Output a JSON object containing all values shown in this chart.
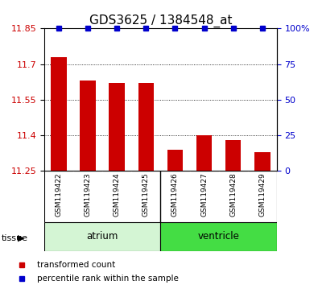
{
  "title": "GDS3625 / 1384548_at",
  "samples": [
    "GSM119422",
    "GSM119423",
    "GSM119424",
    "GSM119425",
    "GSM119426",
    "GSM119427",
    "GSM119428",
    "GSM119429"
  ],
  "bar_values": [
    11.73,
    11.63,
    11.62,
    11.62,
    11.34,
    11.4,
    11.38,
    11.33
  ],
  "percentile_values": [
    100,
    100,
    100,
    100,
    100,
    100,
    100,
    100
  ],
  "ymin": 11.25,
  "ymax": 11.85,
  "yticks": [
    11.25,
    11.4,
    11.55,
    11.7,
    11.85
  ],
  "ytick_labels": [
    "11.25",
    "11.4",
    "11.55",
    "11.7",
    "11.85"
  ],
  "right_yticks": [
    0,
    25,
    50,
    75,
    100
  ],
  "right_ytick_labels": [
    "0",
    "25",
    "50",
    "75",
    "100%"
  ],
  "bar_color": "#cc0000",
  "percentile_color": "#0000cc",
  "atrium_color": "#d4f5d4",
  "ventricle_color": "#44dd44",
  "sample_box_color": "#cccccc",
  "legend_items": [
    {
      "label": "transformed count",
      "color": "#cc0000"
    },
    {
      "label": "percentile rank within the sample",
      "color": "#0000cc"
    }
  ],
  "background_color": "#ffffff",
  "tick_label_color_left": "#cc0000",
  "tick_label_color_right": "#0000cc",
  "title_fontsize": 11,
  "bar_width": 0.55
}
